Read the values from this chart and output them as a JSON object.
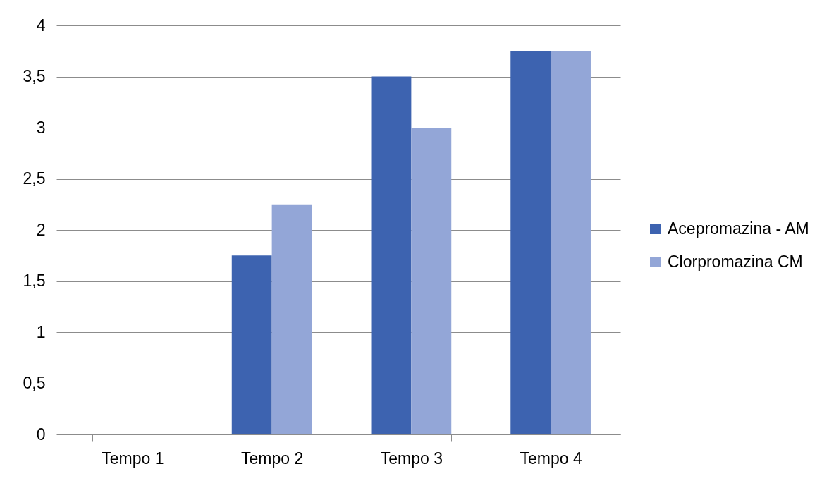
{
  "chart_data": {
    "type": "bar",
    "categories": [
      "Tempo 1",
      "Tempo 2",
      "Tempo 3",
      "Tempo 4"
    ],
    "series": [
      {
        "name": "Acepromazina - AM",
        "color": "#3d63b0",
        "values": [
          0,
          1.75,
          3.5,
          3.75
        ]
      },
      {
        "name": "Clorpromazina CM",
        "color": "#93a6d7",
        "values": [
          0,
          2.25,
          3,
          3.75
        ]
      }
    ],
    "ylim": [
      0,
      4
    ],
    "yticks": [
      0,
      {
        "value": 0.5,
        "label": "0,5"
      },
      1,
      {
        "value": 1.5,
        "label": "1,5"
      },
      2,
      {
        "value": 2.5,
        "label": "2,5"
      },
      3,
      {
        "value": 3.5,
        "label": "3,5"
      },
      4
    ],
    "grid": "y",
    "legend": "right"
  }
}
